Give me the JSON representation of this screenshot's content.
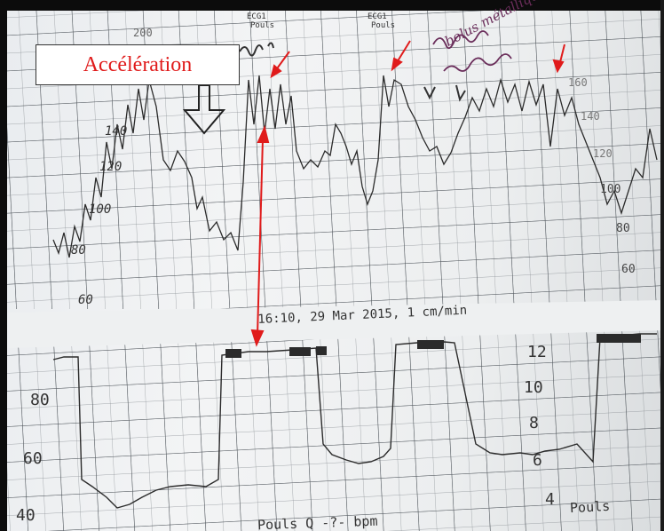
{
  "annotation": {
    "label": "Accélération",
    "color": "#e01b1b"
  },
  "strip": {
    "timestamp": "16:10, 29 Mar 2015, 1 cm/min",
    "channel_label_1": "ECG1",
    "channel_sub_1": "Pouls",
    "channel_label_2": "ECG1",
    "channel_sub_2": "Pouls",
    "upper_scale": [
      "200",
      "160",
      "140",
      "120",
      "100",
      "80",
      "60"
    ],
    "right_scale": [
      "160",
      "140",
      "120",
      "100",
      "80",
      "60"
    ],
    "lower_scale": [
      "80",
      "60",
      "40"
    ],
    "lower_right_scale": [
      "12",
      "10",
      "8",
      "6",
      "4"
    ],
    "bottom_text_1": "Pouls",
    "bottom_text_2": "Pouls Q -?- bpm",
    "handwriting": "bolus métallique"
  }
}
